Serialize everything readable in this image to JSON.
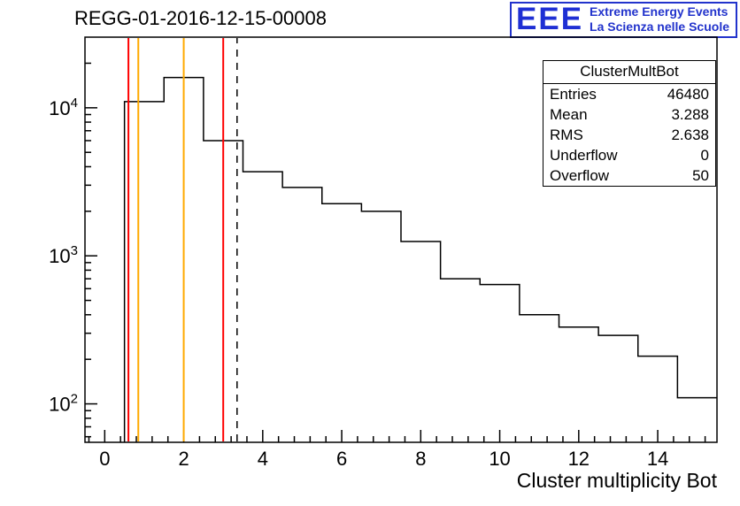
{
  "logo": {
    "letters": "EEE",
    "line1": "Extreme Energy Events",
    "line2": "La Scienza nelle Scuole",
    "color": "#2233cc"
  },
  "stats": {
    "header": "ClusterMultBot",
    "rows": [
      {
        "label": "Entries",
        "value": "46480"
      },
      {
        "label": "Mean",
        "value": "3.288"
      },
      {
        "label": "RMS",
        "value": "2.638"
      },
      {
        "label": "Underflow",
        "value": "0"
      },
      {
        "label": "Overflow",
        "value": "50"
      }
    ]
  },
  "chart_data": {
    "type": "bar",
    "style": "step-histogram",
    "title": "REGG-01-2016-12-15-00008",
    "xlabel": "Cluster multiplicity Bot",
    "ylabel": "",
    "yscale": "log",
    "grid": false,
    "xlim": [
      -0.5,
      15.5
    ],
    "ylim": [
      55,
      30000
    ],
    "line_color": "#000000",
    "bin_start": 0.5,
    "bin_width": 1,
    "counts": [
      11000,
      16000,
      6000,
      3700,
      2900,
      2250,
      2000,
      1250,
      700,
      640,
      400,
      330,
      290,
      210,
      110
    ],
    "x_ticks": [
      {
        "value": 0,
        "label": "0"
      },
      {
        "value": 2,
        "label": "2"
      },
      {
        "value": 4,
        "label": "4"
      },
      {
        "value": 6,
        "label": "6"
      },
      {
        "value": 8,
        "label": "8"
      },
      {
        "value": 10,
        "label": "10"
      },
      {
        "value": 12,
        "label": "12"
      },
      {
        "value": 14,
        "label": "14"
      }
    ],
    "y_ticks": [
      {
        "value": 100,
        "base": "10",
        "exp": "2"
      },
      {
        "value": 1000,
        "base": "10",
        "exp": "3"
      },
      {
        "value": 10000,
        "base": "10",
        "exp": "4"
      }
    ],
    "marker_lines": [
      {
        "x": 0.6,
        "color": "#ff0000",
        "style": "solid",
        "width": 2
      },
      {
        "x": 0.85,
        "color": "#ffaa00",
        "style": "solid",
        "width": 2
      },
      {
        "x": 2.0,
        "color": "#ffaa00",
        "style": "solid",
        "width": 2
      },
      {
        "x": 3.0,
        "color": "#ff0000",
        "style": "solid",
        "width": 2
      },
      {
        "x": 3.35,
        "color": "#000000",
        "style": "dashed",
        "width": 1.5
      }
    ]
  }
}
